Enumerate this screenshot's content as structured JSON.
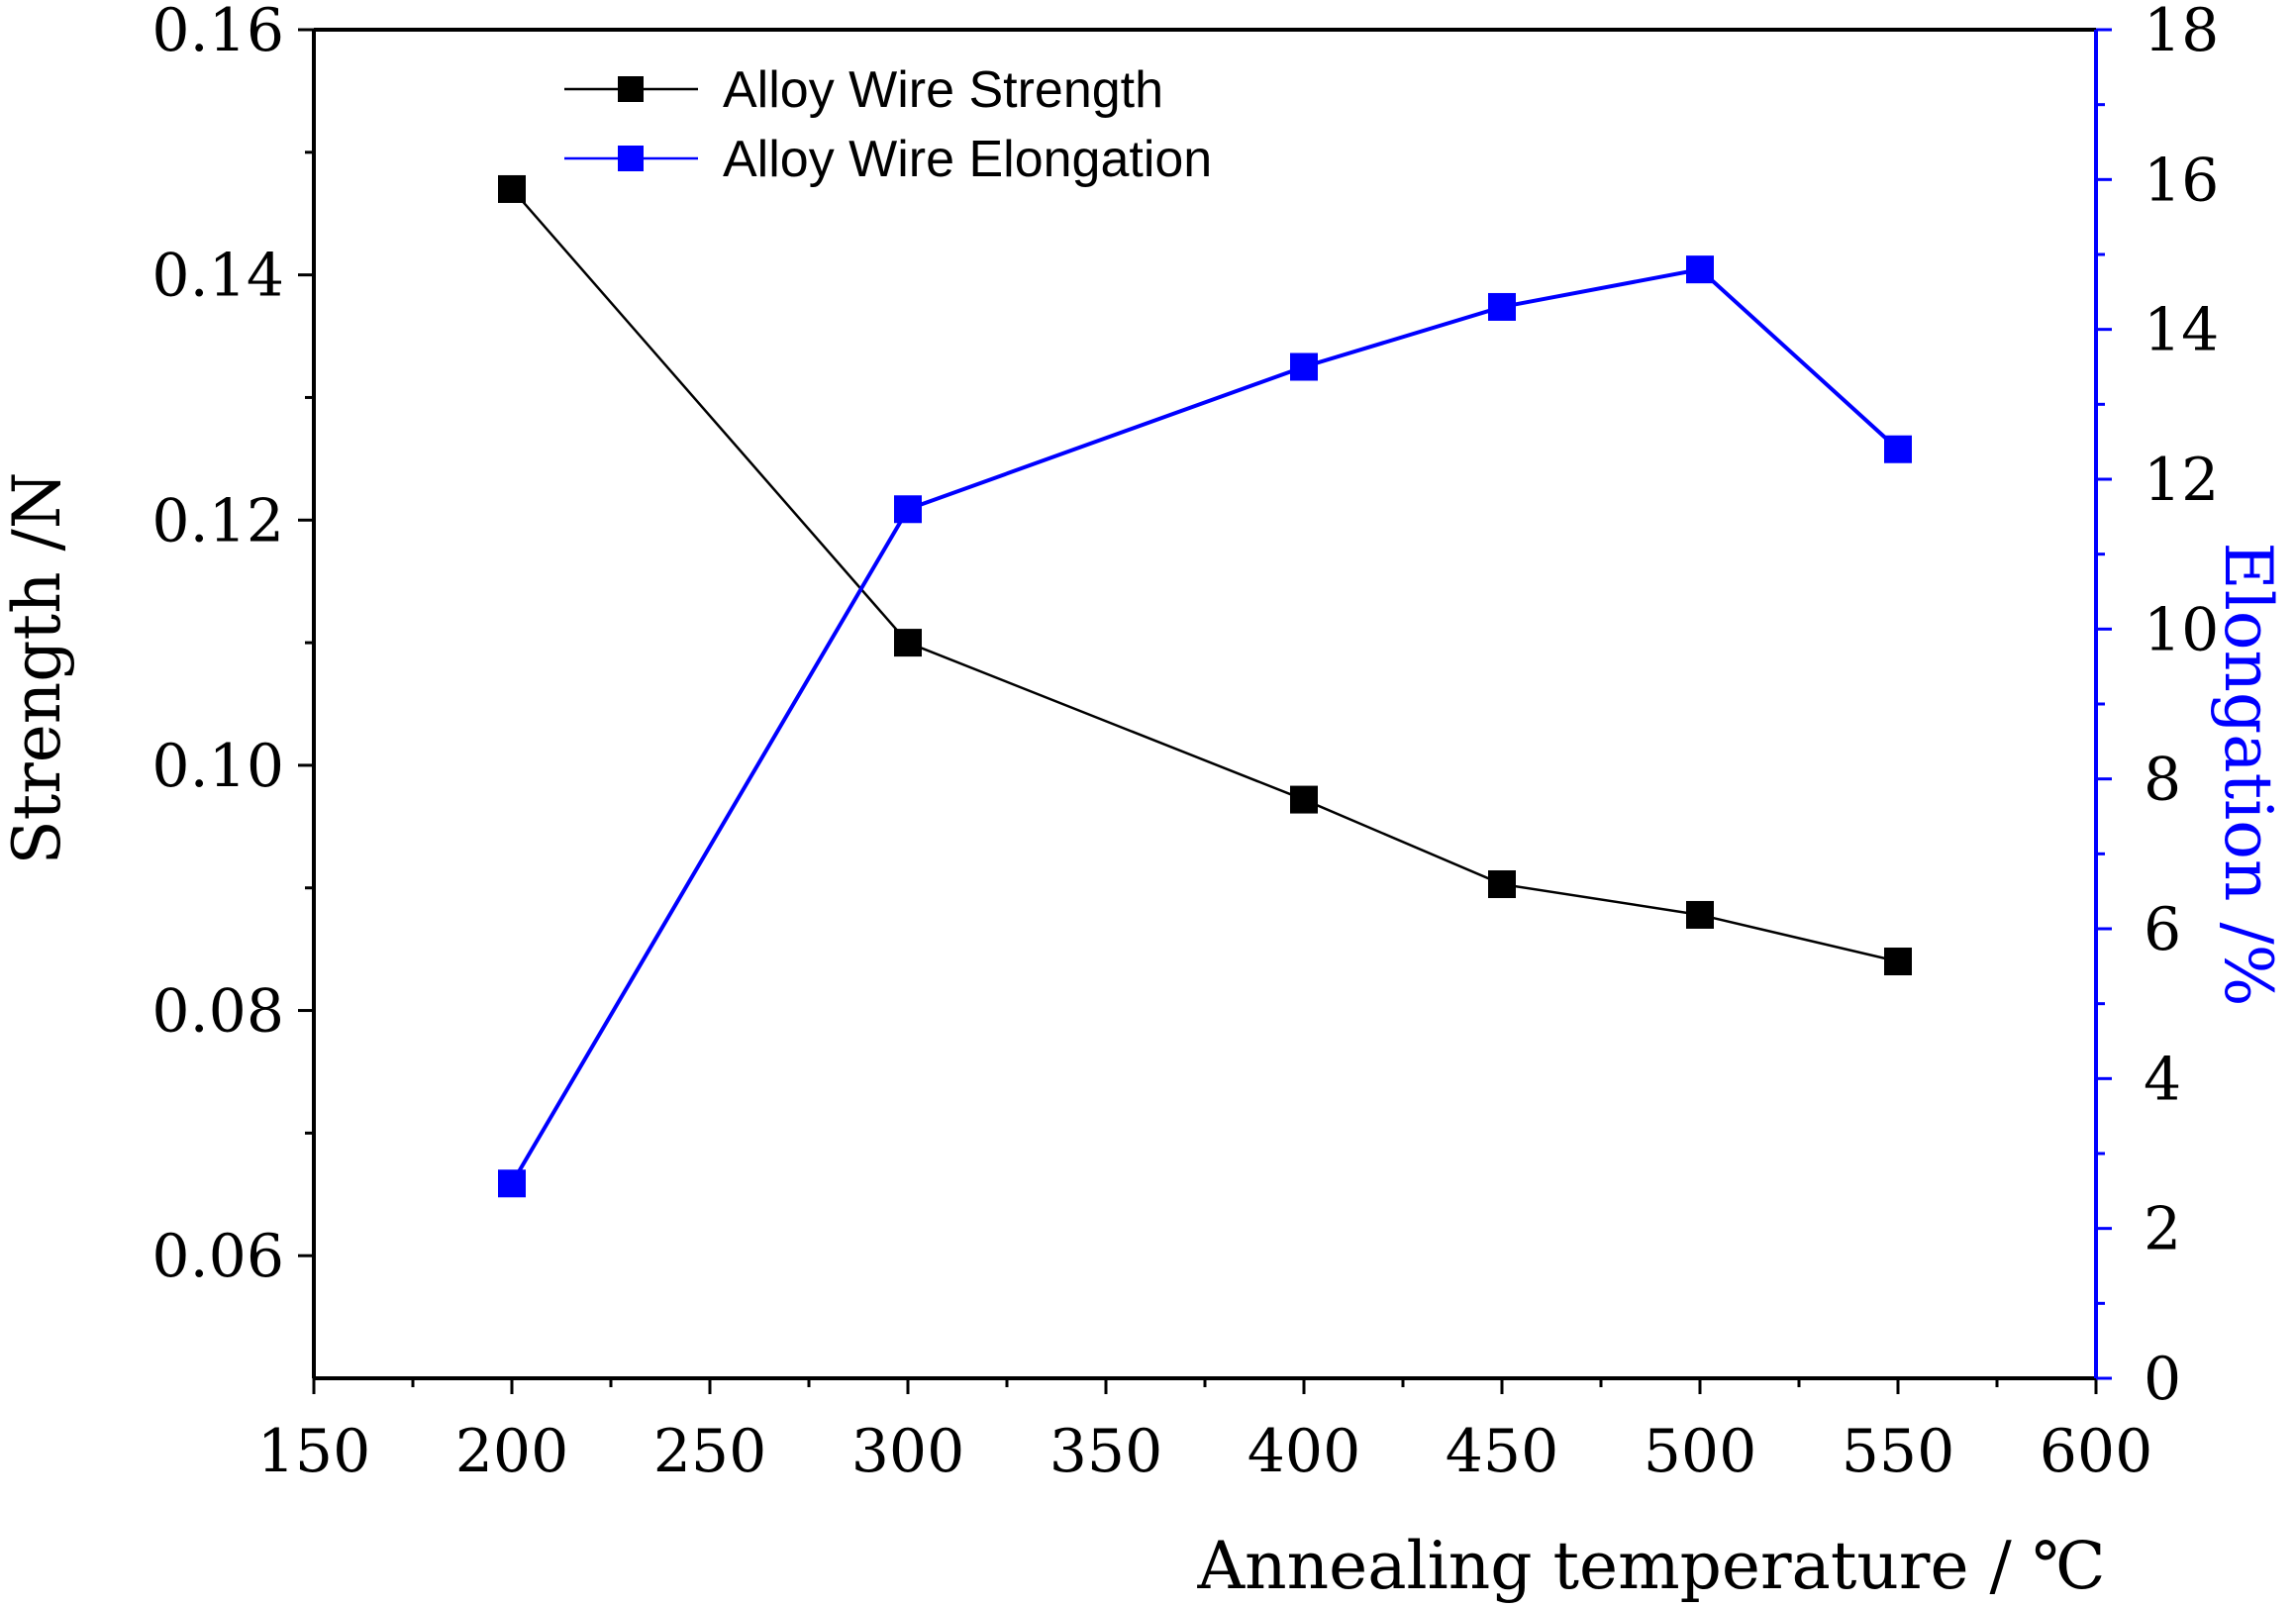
{
  "chart_data": {
    "type": "line",
    "title": "",
    "xlabel": "Annealing temperature / ℃",
    "ylabel": "Strength /N",
    "y2label": "Elongation /%",
    "xlim": [
      150,
      600
    ],
    "ylim": [
      0.05,
      0.16
    ],
    "y2lim": [
      0,
      18
    ],
    "x_ticks": [
      "150",
      "200",
      "250",
      "300",
      "350",
      "400",
      "450",
      "500",
      "550",
      "600"
    ],
    "y_ticks": [
      "0.06",
      "0.08",
      "0.10",
      "0.12",
      "0.14",
      "0.16"
    ],
    "y2_ticks": [
      "0",
      "2",
      "4",
      "6",
      "8",
      "10",
      "12",
      "14",
      "16",
      "18"
    ],
    "legend_position": "top-left",
    "grid": false,
    "series": [
      {
        "name": "Alloy Wire Strength",
        "axis": "left",
        "color": "#000000",
        "marker": "square",
        "x": [
          200,
          300,
          400,
          450,
          500,
          550
        ],
        "values": [
          0.147,
          0.11,
          0.0972,
          0.0903,
          0.0878,
          0.084
        ]
      },
      {
        "name": "Alloy Wire Elongation",
        "axis": "right",
        "color": "#0000ff",
        "marker": "square",
        "x": [
          200,
          300,
          400,
          450,
          500,
          550
        ],
        "values": [
          2.6,
          11.6,
          13.5,
          14.3,
          14.8,
          12.4
        ]
      }
    ]
  }
}
